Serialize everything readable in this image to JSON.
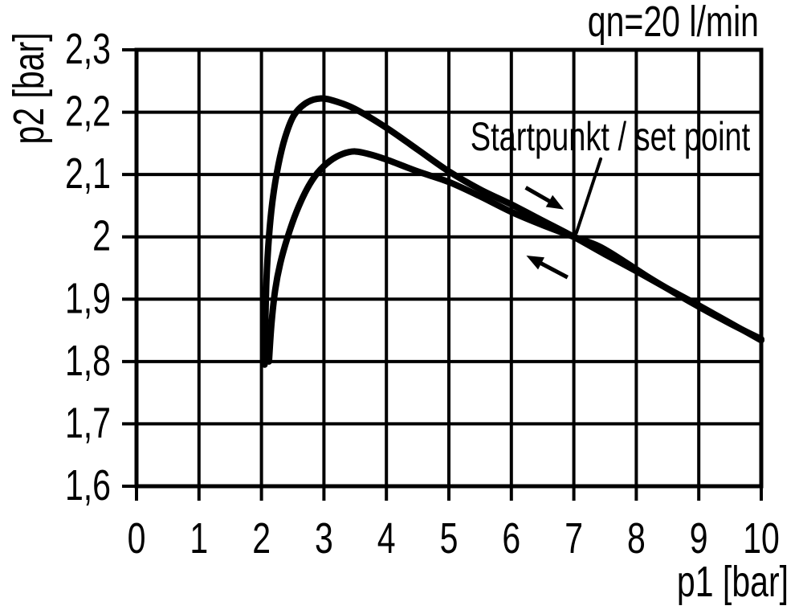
{
  "header": {
    "flow_label": "qn=20 l/min"
  },
  "chart_data": {
    "type": "line",
    "title": "",
    "xlabel": "p1 [bar]",
    "ylabel": "p2 [bar]",
    "xlim": [
      0,
      10
    ],
    "ylim": [
      1.6,
      2.3
    ],
    "grid": true,
    "legend": "none",
    "colors": {
      "curve": "#000000",
      "grid": "#000000",
      "text": "#000000",
      "background": "#ffffff"
    },
    "x_ticks": [
      0,
      1,
      2,
      3,
      4,
      5,
      6,
      7,
      8,
      9,
      10
    ],
    "x_tick_labels": [
      "0",
      "1",
      "2",
      "3",
      "4",
      "5",
      "6",
      "7",
      "8",
      "9",
      "10"
    ],
    "y_ticks": [
      1.6,
      1.7,
      1.8,
      1.9,
      2.0,
      2.1,
      2.2,
      2.3
    ],
    "y_tick_labels": [
      "1,6",
      "1,7",
      "1,8",
      "1,9",
      "2",
      "2,1",
      "2,2",
      "2,3"
    ],
    "annotation": {
      "label": "Startpunkt / set point",
      "point": [
        7.0,
        2.0
      ],
      "leader_from": [
        7.43,
        2.125
      ],
      "leader_to": [
        7.04,
        2.006
      ]
    },
    "arrows": [
      {
        "name": "direction-forward",
        "from": [
          6.23,
          2.079
        ],
        "to": [
          6.84,
          2.044
        ]
      },
      {
        "name": "direction-return",
        "from": [
          6.9,
          1.935
        ],
        "to": [
          6.24,
          1.97
        ]
      }
    ],
    "series": [
      {
        "name": "upper-branch",
        "points": [
          [
            2.05,
            1.795
          ],
          [
            2.06,
            1.85
          ],
          [
            2.08,
            1.93
          ],
          [
            2.12,
            2.0
          ],
          [
            2.18,
            2.06
          ],
          [
            2.27,
            2.115
          ],
          [
            2.38,
            2.16
          ],
          [
            2.52,
            2.195
          ],
          [
            2.72,
            2.215
          ],
          [
            2.95,
            2.222
          ],
          [
            3.2,
            2.217
          ],
          [
            3.5,
            2.205
          ],
          [
            4.0,
            2.175
          ],
          [
            4.5,
            2.14
          ],
          [
            5.0,
            2.105
          ],
          [
            5.5,
            2.076
          ],
          [
            6.0,
            2.052
          ],
          [
            6.5,
            2.026
          ],
          [
            7.0,
            2.0
          ],
          [
            7.5,
            1.972
          ],
          [
            8.0,
            1.945
          ],
          [
            8.5,
            1.917
          ],
          [
            9.0,
            1.89
          ],
          [
            9.5,
            1.862
          ],
          [
            10.0,
            1.834
          ]
        ]
      },
      {
        "name": "lower-branch",
        "points": [
          [
            2.12,
            1.8
          ],
          [
            2.16,
            1.86
          ],
          [
            2.22,
            1.915
          ],
          [
            2.3,
            1.957
          ],
          [
            2.42,
            2.0
          ],
          [
            2.56,
            2.04
          ],
          [
            2.73,
            2.077
          ],
          [
            2.9,
            2.103
          ],
          [
            3.1,
            2.122
          ],
          [
            3.3,
            2.133
          ],
          [
            3.5,
            2.137
          ],
          [
            3.75,
            2.132
          ],
          [
            4.0,
            2.124
          ],
          [
            4.5,
            2.105
          ],
          [
            5.0,
            2.088
          ],
          [
            5.5,
            2.065
          ],
          [
            6.0,
            2.04
          ],
          [
            6.5,
            2.019
          ],
          [
            7.0,
            2.0
          ],
          [
            7.4,
            1.985
          ],
          [
            7.8,
            1.961
          ],
          [
            8.2,
            1.935
          ],
          [
            8.6,
            1.911
          ],
          [
            9.0,
            1.888
          ],
          [
            9.5,
            1.861
          ],
          [
            10.0,
            1.836
          ]
        ]
      }
    ]
  }
}
